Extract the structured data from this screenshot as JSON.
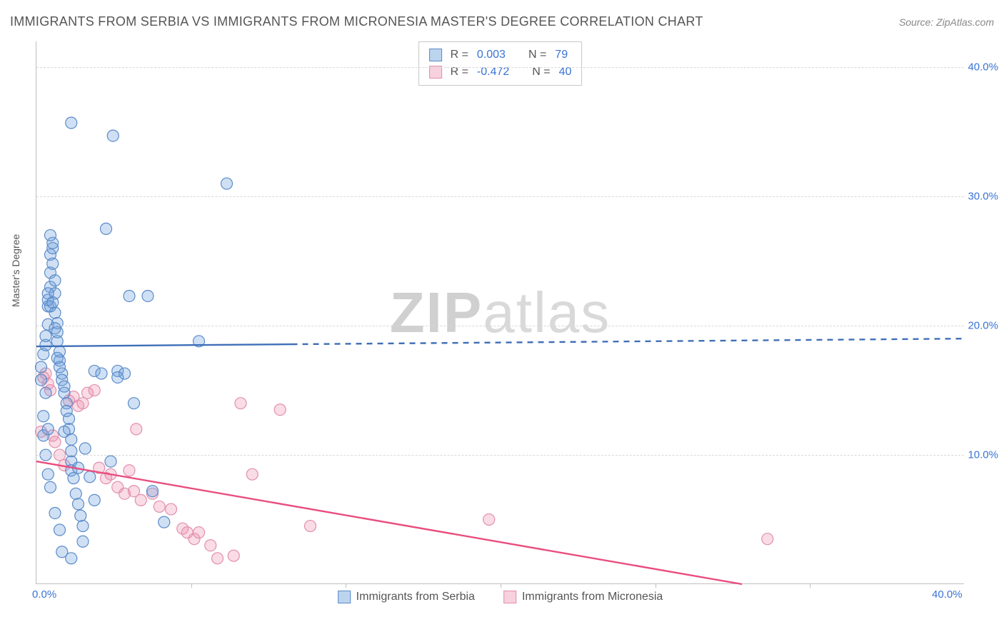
{
  "title": "IMMIGRANTS FROM SERBIA VS IMMIGRANTS FROM MICRONESIA MASTER'S DEGREE CORRELATION CHART",
  "source_label": "Source: ZipAtlas.com",
  "watermark": {
    "bold": "ZIP",
    "light": "atlas"
  },
  "ylabel": "Master's Degree",
  "chart": {
    "type": "scatter",
    "xlim": [
      0,
      40
    ],
    "ylim": [
      0,
      42
    ],
    "yticks": [
      10,
      20,
      30,
      40
    ],
    "ytick_labels": [
      "10.0%",
      "20.0%",
      "30.0%",
      "40.0%"
    ],
    "xticks": [
      0,
      40
    ],
    "xtick_labels": [
      "0.0%",
      "40.0%"
    ],
    "xtick_minor": [
      6.67,
      13.33,
      20,
      26.67,
      33.33
    ],
    "grid_color": "#d8d8d8",
    "background_color": "#ffffff",
    "axis_color": "#bfbfbf",
    "marker_radius": 8,
    "marker_stroke_width": 1.2,
    "watermark_color": "#d9d9d9",
    "series": {
      "serbia": {
        "label": "Immigrants from Serbia",
        "fill": "rgba(108,159,220,0.32)",
        "stroke": "#5a8bc9",
        "trend_color": "#3f6fb8",
        "trend_width": 2.4,
        "trend_solid_to_x": 11,
        "trend_y_start": 18.4,
        "trend_y_end": 19.0,
        "R": "0.003",
        "N": "79",
        "points": [
          [
            0.3,
            17.8
          ],
          [
            0.4,
            18.5
          ],
          [
            0.4,
            19.2
          ],
          [
            0.5,
            20.1
          ],
          [
            0.5,
            21.5
          ],
          [
            0.5,
            22.0
          ],
          [
            0.6,
            23.0
          ],
          [
            0.6,
            24.1
          ],
          [
            0.6,
            25.5
          ],
          [
            0.7,
            26.0
          ],
          [
            0.7,
            26.4
          ],
          [
            0.7,
            24.8
          ],
          [
            0.8,
            23.5
          ],
          [
            0.8,
            22.5
          ],
          [
            0.8,
            21.0
          ],
          [
            0.9,
            20.2
          ],
          [
            0.9,
            19.5
          ],
          [
            0.9,
            18.8
          ],
          [
            1.0,
            18.0
          ],
          [
            1.0,
            17.3
          ],
          [
            1.0,
            16.8
          ],
          [
            1.1,
            16.3
          ],
          [
            1.1,
            15.8
          ],
          [
            1.2,
            15.3
          ],
          [
            1.2,
            14.8
          ],
          [
            1.3,
            14.0
          ],
          [
            1.3,
            13.4
          ],
          [
            1.4,
            12.8
          ],
          [
            1.4,
            12.0
          ],
          [
            1.5,
            11.2
          ],
          [
            1.5,
            9.5
          ],
          [
            1.5,
            8.8
          ],
          [
            1.6,
            8.2
          ],
          [
            1.7,
            7.0
          ],
          [
            1.8,
            6.2
          ],
          [
            1.9,
            5.3
          ],
          [
            2.0,
            4.5
          ],
          [
            2.0,
            3.3
          ],
          [
            1.5,
            35.7
          ],
          [
            3.3,
            34.7
          ],
          [
            3.0,
            27.5
          ],
          [
            2.5,
            16.5
          ],
          [
            2.8,
            16.3
          ],
          [
            3.5,
            16.5
          ],
          [
            3.8,
            16.3
          ],
          [
            4.0,
            22.3
          ],
          [
            4.2,
            14.0
          ],
          [
            4.8,
            22.3
          ],
          [
            5.0,
            7.2
          ],
          [
            5.5,
            4.8
          ],
          [
            8.2,
            31.0
          ],
          [
            7.0,
            18.8
          ],
          [
            0.3,
            13.0
          ],
          [
            0.4,
            10.0
          ],
          [
            0.5,
            8.5
          ],
          [
            0.6,
            7.5
          ],
          [
            0.8,
            5.5
          ],
          [
            1.0,
            4.2
          ],
          [
            1.1,
            2.5
          ],
          [
            1.5,
            2.0
          ],
          [
            2.1,
            10.5
          ],
          [
            2.3,
            8.3
          ],
          [
            2.5,
            6.5
          ],
          [
            3.2,
            9.5
          ],
          [
            0.2,
            15.8
          ],
          [
            0.2,
            16.8
          ],
          [
            0.3,
            11.5
          ],
          [
            0.4,
            14.8
          ],
          [
            0.5,
            12.0
          ],
          [
            0.5,
            22.5
          ],
          [
            0.6,
            27.0
          ],
          [
            0.6,
            21.5
          ],
          [
            0.7,
            21.8
          ],
          [
            0.8,
            19.8
          ],
          [
            0.9,
            17.5
          ],
          [
            3.5,
            16.0
          ],
          [
            1.5,
            10.3
          ],
          [
            1.2,
            11.8
          ],
          [
            1.8,
            9.0
          ]
        ]
      },
      "micronesia": {
        "label": "Immigrants from Micronesia",
        "fill": "rgba(235,140,170,0.30)",
        "stroke": "#e38fae",
        "trend_color": "#e94d7e",
        "trend_width": 2.4,
        "trend_y_start": 9.5,
        "trend_y_end": -3.0,
        "R": "-0.472",
        "N": "40",
        "points": [
          [
            0.3,
            16.0
          ],
          [
            0.4,
            16.3
          ],
          [
            0.5,
            15.5
          ],
          [
            0.6,
            15.0
          ],
          [
            0.7,
            11.5
          ],
          [
            0.8,
            11.0
          ],
          [
            1.0,
            10.0
          ],
          [
            1.2,
            9.2
          ],
          [
            1.4,
            14.2
          ],
          [
            1.6,
            14.5
          ],
          [
            1.8,
            13.8
          ],
          [
            2.0,
            14.0
          ],
          [
            2.5,
            15.0
          ],
          [
            2.7,
            9.0
          ],
          [
            3.0,
            8.2
          ],
          [
            3.2,
            8.5
          ],
          [
            3.5,
            7.5
          ],
          [
            3.8,
            7.0
          ],
          [
            4.0,
            8.8
          ],
          [
            4.2,
            7.2
          ],
          [
            4.3,
            12.0
          ],
          [
            4.5,
            6.5
          ],
          [
            5.0,
            7.0
          ],
          [
            5.3,
            6.0
          ],
          [
            5.8,
            5.8
          ],
          [
            6.3,
            4.3
          ],
          [
            6.5,
            4.0
          ],
          [
            6.8,
            3.5
          ],
          [
            7.0,
            4.0
          ],
          [
            7.5,
            3.0
          ],
          [
            7.8,
            2.0
          ],
          [
            8.5,
            2.2
          ],
          [
            8.8,
            14.0
          ],
          [
            9.3,
            8.5
          ],
          [
            10.5,
            13.5
          ],
          [
            11.8,
            4.5
          ],
          [
            19.5,
            5.0
          ],
          [
            31.5,
            3.5
          ],
          [
            0.2,
            11.8
          ],
          [
            2.2,
            14.8
          ]
        ]
      }
    }
  },
  "legend_top": {
    "r_label": "R =",
    "n_label": "N ="
  }
}
